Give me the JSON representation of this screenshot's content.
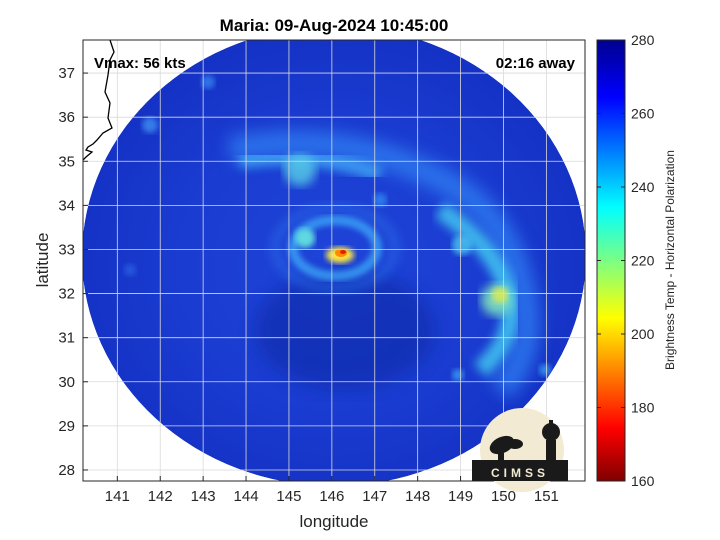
{
  "title": "Maria: 09-Aug-2024 10:45:00",
  "annotations": {
    "vmax": "Vmax: 56 kts",
    "away": "02:16 away"
  },
  "axes": {
    "xlabel": "longitude",
    "ylabel": "latitude",
    "x_ticks": [
      "141",
      "142",
      "143",
      "144",
      "145",
      "146",
      "147",
      "148",
      "149",
      "150",
      "151"
    ],
    "y_ticks": [
      "37",
      "36",
      "35",
      "34",
      "33",
      "32",
      "31",
      "30",
      "29",
      "28"
    ]
  },
  "colorbar": {
    "label": "Brightness Temp - Horizontal Polarization",
    "ticks": [
      "280",
      "260",
      "240",
      "220",
      "200",
      "180",
      "160"
    ],
    "min": 160,
    "max": 280,
    "colormap": "jet"
  },
  "logo": {
    "text": "CIMSS"
  },
  "colors": {
    "scene_blue": "#1e3fd6",
    "deep_blue": "#0a1f9e",
    "coastline": "#000000"
  },
  "chart_data": {
    "type": "heatmap",
    "title": "Maria: 09-Aug-2024 10:45:00",
    "xlabel": "longitude",
    "ylabel": "latitude",
    "xlim": [
      140.2,
      151.9
    ],
    "ylim": [
      27.75,
      37.75
    ],
    "colorbar_range": [
      160,
      280
    ],
    "storm_center": {
      "lon": 146.2,
      "lat": 32.9,
      "brightness_temp_min_approx": 195
    },
    "notable_features": [
      {
        "lon": 149.9,
        "lat": 31.8,
        "brightness_temp_approx": 225
      },
      {
        "lon": 145.3,
        "lat": 34.8,
        "brightness_temp_approx": 240
      }
    ],
    "grid": true
  }
}
